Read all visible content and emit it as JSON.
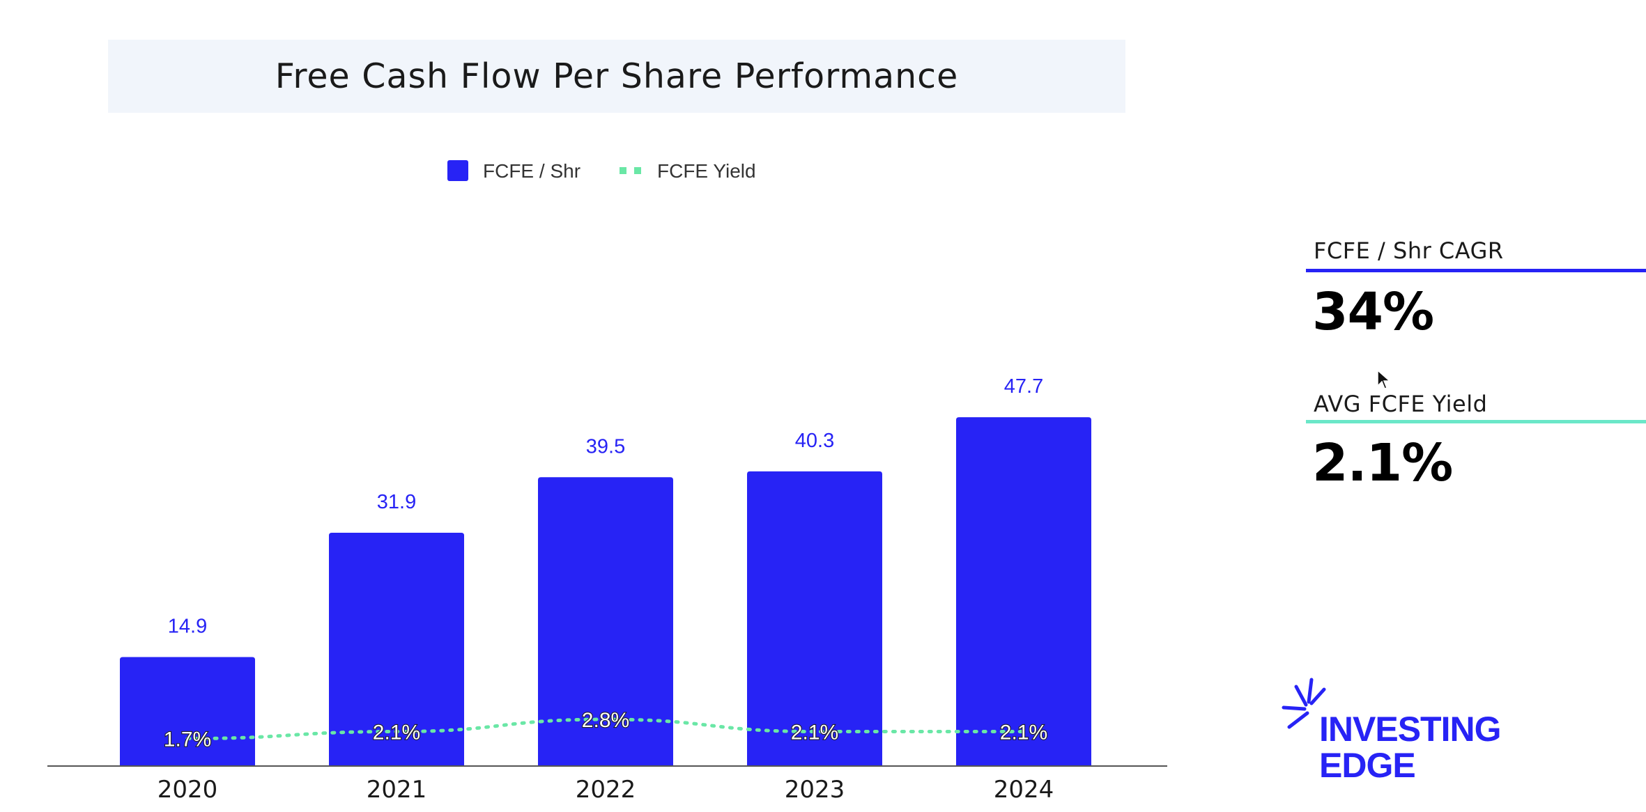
{
  "colors": {
    "bar": "#2723f5",
    "yield_line": "#6ae7a6",
    "label_blue": "#2723f5",
    "cagr_rule": "#2723f5",
    "yield_rule": "#6ae7c8",
    "logo": "#2723f5",
    "axis": "#555555"
  },
  "chart_data": {
    "type": "bar",
    "title": "Free Cash Flow Per Share Performance",
    "categories": [
      "2020",
      "2021",
      "2022",
      "2023",
      "2024"
    ],
    "series": [
      {
        "name": "FCFE / Shr",
        "kind": "bar",
        "values": [
          14.9,
          31.9,
          39.5,
          40.3,
          47.7
        ],
        "labels": [
          "14.9",
          "31.9",
          "39.5",
          "40.3",
          "47.7"
        ]
      },
      {
        "name": "FCFE Yield",
        "kind": "line",
        "style": "dotted",
        "values": [
          1.7,
          2.1,
          2.8,
          2.1,
          2.1
        ],
        "labels": [
          "1.7%",
          "2.1%",
          "2.8%",
          "2.1%",
          "2.1%"
        ]
      }
    ],
    "legend": [
      "FCFE / Shr",
      "FCFE Yield"
    ],
    "legend_position": "top-center",
    "xlabel": "",
    "ylabel": "",
    "ylim": [
      0,
      55
    ],
    "grid": false
  },
  "stats": {
    "cagr_label": "FCFE / Shr CAGR",
    "cagr_value": "34%",
    "yield_label": "AVG FCFE Yield",
    "yield_value": "2.1%"
  },
  "logo": {
    "line1": "INVESTING",
    "line2": "EDGE"
  }
}
